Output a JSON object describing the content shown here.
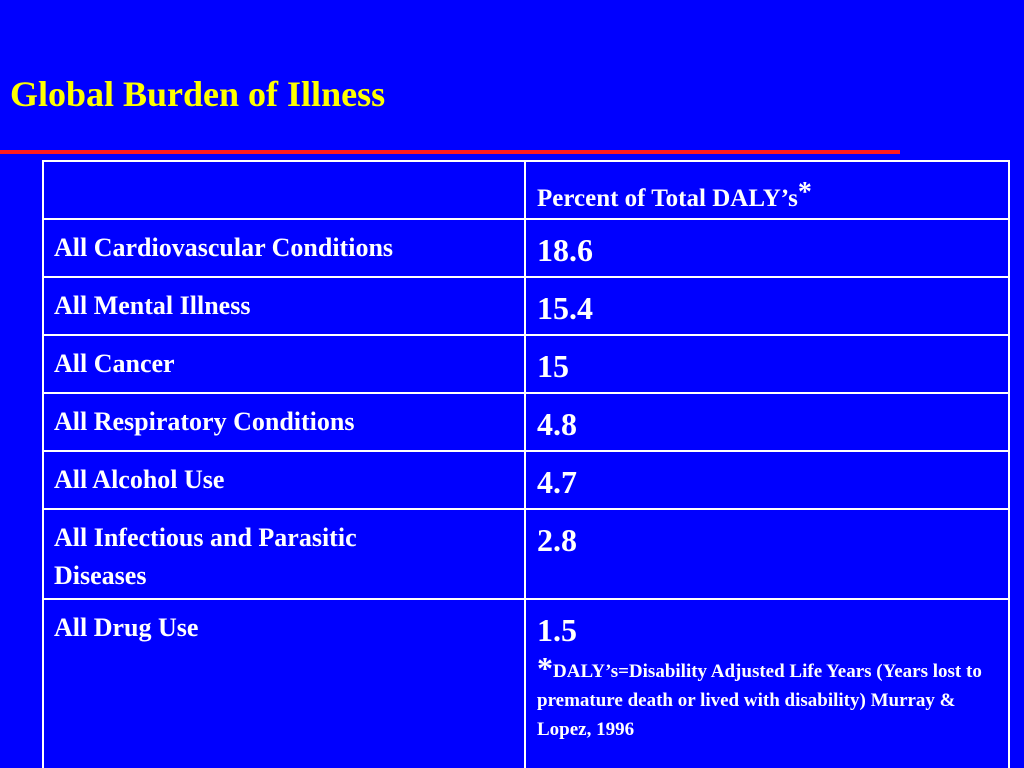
{
  "slide": {
    "title": "Global Burden of Illness",
    "colors": {
      "background": "#0000ff",
      "title": "#ffff00",
      "rule": "#ff1a1a",
      "text": "#ffffff"
    }
  },
  "table": {
    "header": {
      "col1": "",
      "col2": "Percent of Total DALY’s",
      "col2_marker": "*"
    },
    "rows": [
      {
        "condition": "All Cardiovascular Conditions",
        "percent": "18.6"
      },
      {
        "condition": "All Mental Illness",
        "percent": "15.4"
      },
      {
        "condition": "All Cancer",
        "percent": "15"
      },
      {
        "condition": "All Respiratory Conditions",
        "percent": "4.8"
      },
      {
        "condition": "All Alcohol Use",
        "percent": "4.7"
      },
      {
        "condition": "All Infectious and Parasitic Diseases",
        "percent": "2.8"
      },
      {
        "condition": "All Drug Use",
        "percent": "1.5"
      }
    ],
    "footnote": {
      "marker": "*",
      "text": "DALY’s=Disability Adjusted Life Years (Years lost to premature death or lived with disability) Murray & Lopez, 1996"
    }
  }
}
